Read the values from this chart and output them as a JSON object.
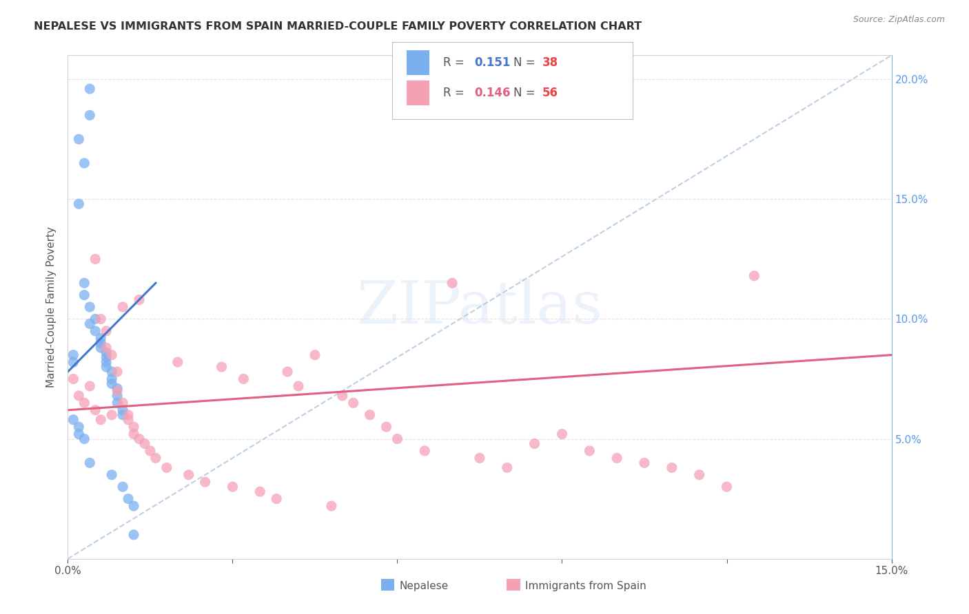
{
  "title": "NEPALESE VS IMMIGRANTS FROM SPAIN MARRIED-COUPLE FAMILY POVERTY CORRELATION CHART",
  "source": "Source: ZipAtlas.com",
  "ylabel": "Married-Couple Family Poverty",
  "xlim": [
    0.0,
    0.15
  ],
  "ylim": [
    0.0,
    0.21
  ],
  "nepalese_R": "0.151",
  "nepalese_N": "38",
  "spain_R": "0.146",
  "spain_N": "56",
  "nepalese_color": "#7aaff0",
  "spain_color": "#f5a0b5",
  "nepalese_line_color": "#4477cc",
  "spain_line_color": "#e06080",
  "dashed_line_color": "#b0c8e0",
  "background_color": "#ffffff",
  "grid_color": "#e0e0e0",
  "watermark": "ZIPatlas",
  "nepalese_line_x0": 0.0,
  "nepalese_line_y0": 0.078,
  "nepalese_line_x1": 0.016,
  "nepalese_line_y1": 0.115,
  "spain_line_x0": 0.0,
  "spain_line_y0": 0.062,
  "spain_line_x1": 0.15,
  "spain_line_y1": 0.085,
  "dashed_line_x0": 0.0,
  "dashed_line_y0": 0.0,
  "dashed_line_x1": 0.15,
  "dashed_line_y1": 0.21,
  "nepalese_x": [
    0.004,
    0.004,
    0.002,
    0.003,
    0.002,
    0.001,
    0.001,
    0.003,
    0.003,
    0.004,
    0.004,
    0.005,
    0.005,
    0.006,
    0.006,
    0.006,
    0.007,
    0.007,
    0.007,
    0.007,
    0.008,
    0.008,
    0.008,
    0.009,
    0.009,
    0.009,
    0.01,
    0.01,
    0.001,
    0.002,
    0.002,
    0.003,
    0.004,
    0.008,
    0.01,
    0.011,
    0.012,
    0.012
  ],
  "nepalese_y": [
    0.196,
    0.185,
    0.175,
    0.165,
    0.148,
    0.085,
    0.082,
    0.115,
    0.11,
    0.105,
    0.098,
    0.1,
    0.095,
    0.092,
    0.09,
    0.088,
    0.086,
    0.084,
    0.082,
    0.08,
    0.078,
    0.075,
    0.073,
    0.071,
    0.068,
    0.065,
    0.062,
    0.06,
    0.058,
    0.055,
    0.052,
    0.05,
    0.04,
    0.035,
    0.03,
    0.025,
    0.022,
    0.01
  ],
  "spain_x": [
    0.001,
    0.002,
    0.003,
    0.004,
    0.005,
    0.005,
    0.006,
    0.006,
    0.007,
    0.007,
    0.008,
    0.008,
    0.009,
    0.009,
    0.01,
    0.01,
    0.011,
    0.011,
    0.012,
    0.012,
    0.013,
    0.013,
    0.014,
    0.015,
    0.016,
    0.018,
    0.02,
    0.022,
    0.025,
    0.028,
    0.03,
    0.032,
    0.035,
    0.038,
    0.04,
    0.042,
    0.045,
    0.048,
    0.05,
    0.052,
    0.055,
    0.058,
    0.06,
    0.065,
    0.07,
    0.075,
    0.08,
    0.085,
    0.09,
    0.095,
    0.1,
    0.105,
    0.11,
    0.115,
    0.12,
    0.125
  ],
  "spain_y": [
    0.075,
    0.068,
    0.065,
    0.072,
    0.125,
    0.062,
    0.058,
    0.1,
    0.095,
    0.088,
    0.085,
    0.06,
    0.078,
    0.07,
    0.105,
    0.065,
    0.06,
    0.058,
    0.055,
    0.052,
    0.108,
    0.05,
    0.048,
    0.045,
    0.042,
    0.038,
    0.082,
    0.035,
    0.032,
    0.08,
    0.03,
    0.075,
    0.028,
    0.025,
    0.078,
    0.072,
    0.085,
    0.022,
    0.068,
    0.065,
    0.06,
    0.055,
    0.05,
    0.045,
    0.115,
    0.042,
    0.038,
    0.048,
    0.052,
    0.045,
    0.042,
    0.04,
    0.038,
    0.035,
    0.03,
    0.118
  ]
}
